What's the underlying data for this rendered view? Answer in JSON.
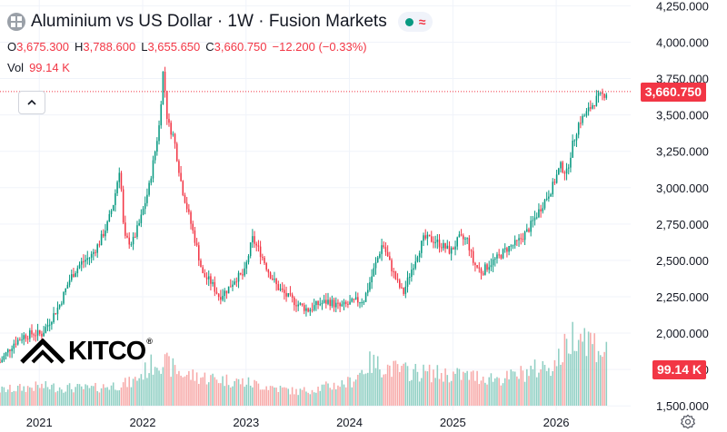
{
  "header": {
    "title": "Aluminium vs US Dollar · 1W · Fusion Markets",
    "symbol_icon": "aluminium-symbol-icon",
    "open_label": "O",
    "open": "3,675.300",
    "high_label": "H",
    "high": "3,788.600",
    "low_label": "L",
    "low": "3,655.650",
    "close_label": "C",
    "close": "3,660.750",
    "change": "−12.200 (−0.33%)",
    "vol_label": "Vol",
    "vol": "99.14 K"
  },
  "price_tag": "3,660.750",
  "volume_tag": "99.14 K",
  "logo": {
    "text": "KITCO",
    "mark": "®"
  },
  "colors": {
    "up": "#089981",
    "down": "#f23645",
    "up_volume": "#8fcfc3",
    "down_volume": "#f7a9a8",
    "grid": "#f0f3fa"
  },
  "chart_data": {
    "type": "candlestick",
    "title": "Aluminium vs US Dollar · 1W · Fusion Markets",
    "y_ticks": [
      "1,500.000",
      "1,750.000",
      "2,000.000",
      "2,250.000",
      "2,500.000",
      "2,750.000",
      "3,000.000",
      "3,250.000",
      "3,500.000",
      "3,750.000",
      "4,000.000",
      "4,250.000"
    ],
    "y_tick_values": [
      1500,
      1750,
      2000,
      2250,
      2500,
      2750,
      3000,
      3250,
      3500,
      3750,
      4000,
      4250
    ],
    "x_ticks": [
      "2021",
      "2022",
      "2023",
      "2024",
      "2025",
      "2026"
    ],
    "x_tick_years": [
      2021,
      2022,
      2023,
      2024,
      2025,
      2026
    ],
    "x_range": [
      2020.62,
      2026.72
    ],
    "y_range": [
      1470,
      4290
    ],
    "last_price": 3660.75,
    "price_path": [
      [
        2020.62,
        1800
      ],
      [
        2020.75,
        1930
      ],
      [
        2020.85,
        1980
      ],
      [
        2020.95,
        2000
      ],
      [
        2021.02,
        1990
      ],
      [
        2021.1,
        2080
      ],
      [
        2021.2,
        2200
      ],
      [
        2021.3,
        2380
      ],
      [
        2021.4,
        2480
      ],
      [
        2021.5,
        2530
      ],
      [
        2021.58,
        2620
      ],
      [
        2021.66,
        2750
      ],
      [
        2021.72,
        2900
      ],
      [
        2021.78,
        3150
      ],
      [
        2021.82,
        2650
      ],
      [
        2021.9,
        2620
      ],
      [
        2021.98,
        2780
      ],
      [
        2022.06,
        3000
      ],
      [
        2022.12,
        3250
      ],
      [
        2022.16,
        3430
      ],
      [
        2022.2,
        3820
      ],
      [
        2022.24,
        3450
      ],
      [
        2022.3,
        3350
      ],
      [
        2022.38,
        3000
      ],
      [
        2022.45,
        2800
      ],
      [
        2022.52,
        2600
      ],
      [
        2022.58,
        2400
      ],
      [
        2022.66,
        2350
      ],
      [
        2022.74,
        2250
      ],
      [
        2022.82,
        2300
      ],
      [
        2022.9,
        2380
      ],
      [
        2022.98,
        2400
      ],
      [
        2023.06,
        2650
      ],
      [
        2023.14,
        2550
      ],
      [
        2023.22,
        2420
      ],
      [
        2023.3,
        2320
      ],
      [
        2023.4,
        2250
      ],
      [
        2023.5,
        2200
      ],
      [
        2023.6,
        2160
      ],
      [
        2023.7,
        2200
      ],
      [
        2023.8,
        2220
      ],
      [
        2023.9,
        2180
      ],
      [
        2024.0,
        2200
      ],
      [
        2024.06,
        2220
      ],
      [
        2024.14,
        2230
      ],
      [
        2024.22,
        2400
      ],
      [
        2024.32,
        2620
      ],
      [
        2024.38,
        2500
      ],
      [
        2024.46,
        2350
      ],
      [
        2024.52,
        2270
      ],
      [
        2024.58,
        2400
      ],
      [
        2024.66,
        2550
      ],
      [
        2024.72,
        2650
      ],
      [
        2024.82,
        2640
      ],
      [
        2024.9,
        2600
      ],
      [
        2024.98,
        2560
      ],
      [
        2025.06,
        2650
      ],
      [
        2025.14,
        2640
      ],
      [
        2025.2,
        2480
      ],
      [
        2025.28,
        2420
      ],
      [
        2025.36,
        2480
      ],
      [
        2025.44,
        2520
      ],
      [
        2025.52,
        2580
      ],
      [
        2025.62,
        2620
      ],
      [
        2025.72,
        2700
      ],
      [
        2025.8,
        2800
      ],
      [
        2025.88,
        2900
      ],
      [
        2025.96,
        3000
      ],
      [
        2026.04,
        3150
      ],
      [
        2026.1,
        3100
      ],
      [
        2026.16,
        3300
      ],
      [
        2026.22,
        3450
      ],
      [
        2026.28,
        3500
      ],
      [
        2026.34,
        3560
      ],
      [
        2026.4,
        3620
      ],
      [
        2026.46,
        3640
      ],
      [
        2026.5,
        3660
      ]
    ],
    "volume_level": [
      [
        2020.62,
        0.2
      ],
      [
        2021.0,
        0.25
      ],
      [
        2021.5,
        0.22
      ],
      [
        2021.9,
        0.3
      ],
      [
        2022.15,
        0.6
      ],
      [
        2022.4,
        0.4
      ],
      [
        2023.0,
        0.3
      ],
      [
        2023.5,
        0.18
      ],
      [
        2024.0,
        0.3
      ],
      [
        2024.2,
        0.55
      ],
      [
        2024.5,
        0.45
      ],
      [
        2025.0,
        0.4
      ],
      [
        2025.5,
        0.35
      ],
      [
        2026.0,
        0.55
      ],
      [
        2026.2,
        1.0
      ],
      [
        2026.5,
        0.65
      ]
    ]
  }
}
